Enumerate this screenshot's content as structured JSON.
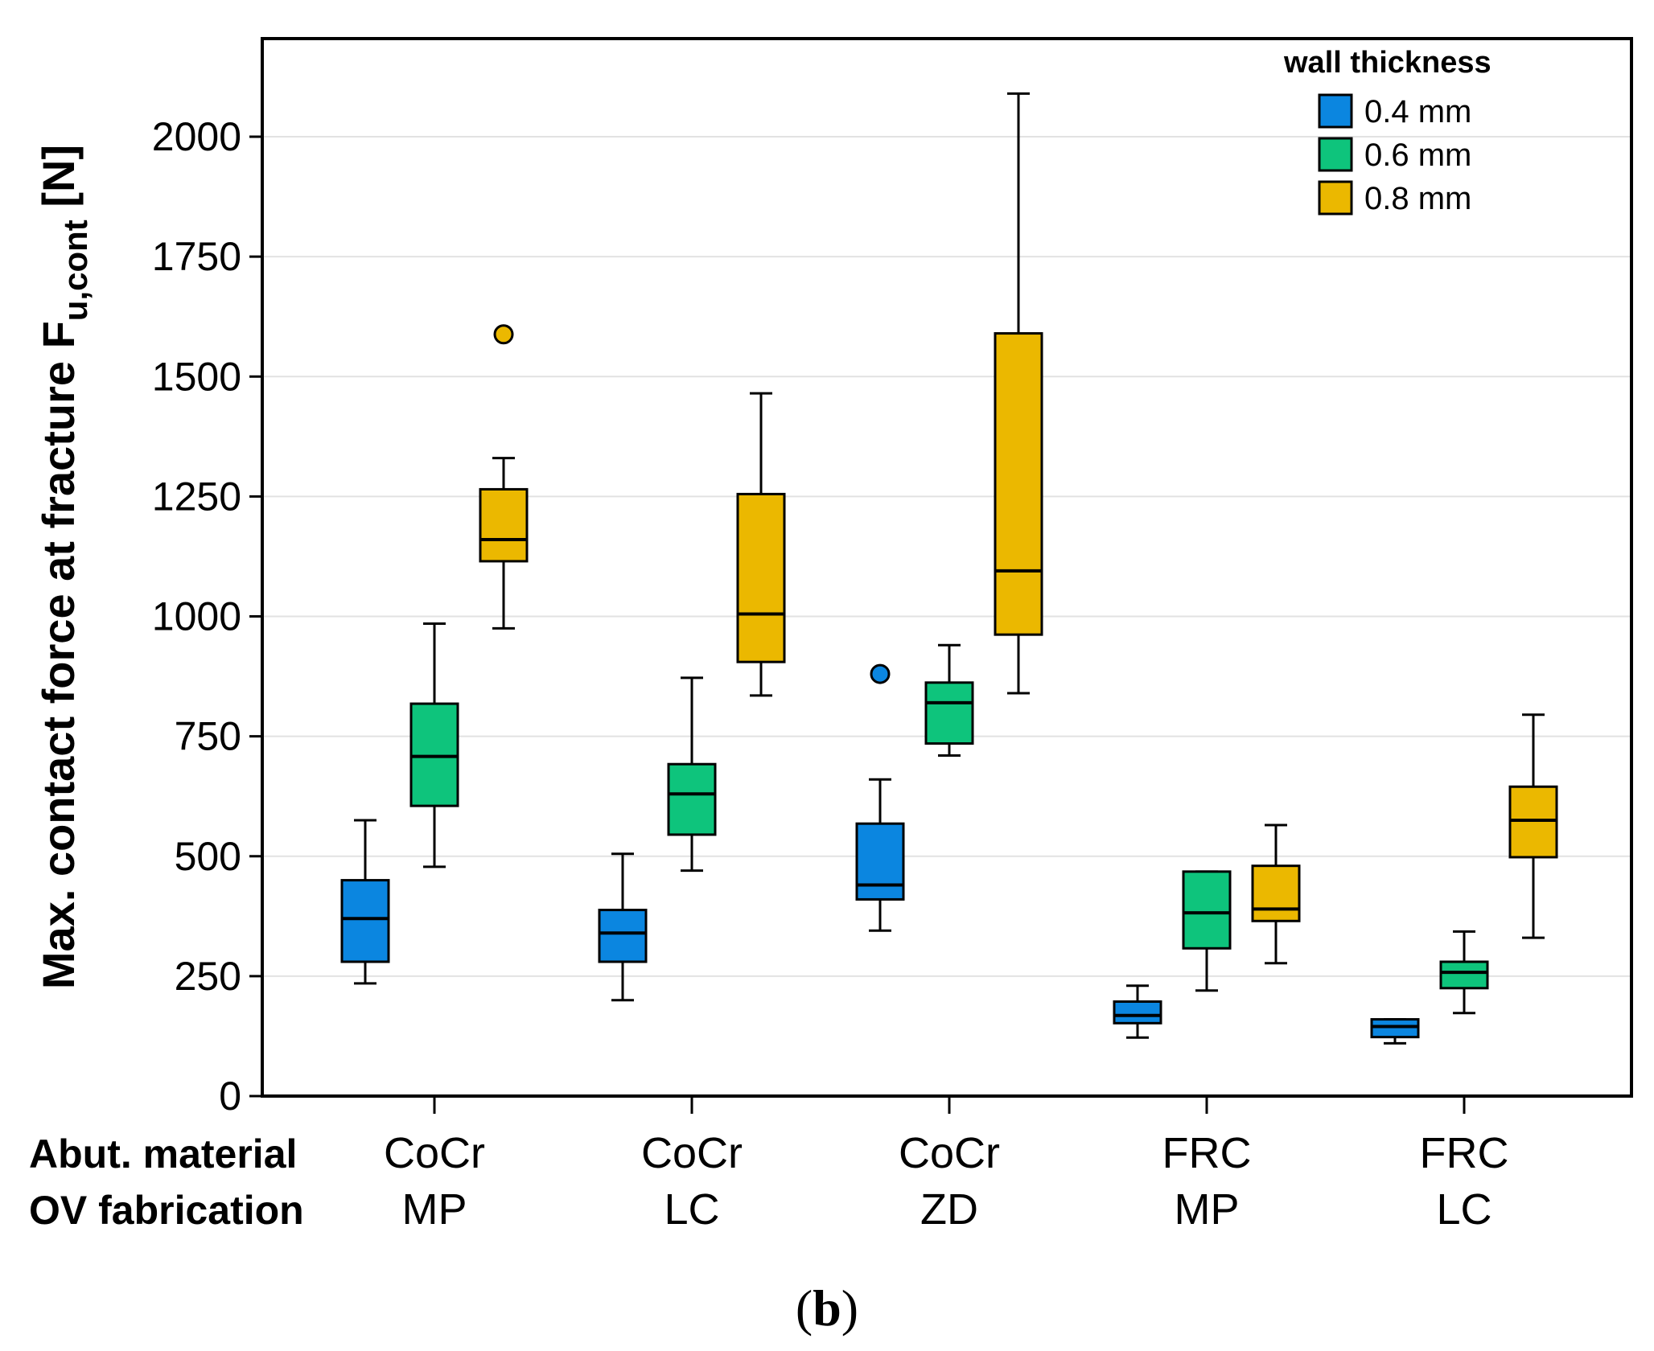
{
  "chart_data": {
    "type": "box",
    "ylabel_main": "Max. contact force at fracture F",
    "ylabel_sub": "u,cont",
    "ylabel_unit": " [N]",
    "ylim": [
      0,
      2220
    ],
    "yticks": [
      0,
      250,
      500,
      750,
      1000,
      1250,
      1500,
      1750,
      2000
    ],
    "grid": true,
    "row_labels": [
      "Abut. material",
      "OV fabrication"
    ],
    "groups": [
      {
        "material": "CoCr",
        "fabrication": "MP"
      },
      {
        "material": "CoCr",
        "fabrication": "LC"
      },
      {
        "material": "CoCr",
        "fabrication": "ZD"
      },
      {
        "material": "FRC",
        "fabrication": "MP"
      },
      {
        "material": "FRC",
        "fabrication": "LC"
      }
    ],
    "legend": {
      "title": "wall thickness",
      "position": "top-right",
      "entries": [
        "0.4 mm",
        "0.6 mm",
        "0.8 mm"
      ]
    },
    "series_colors": [
      "#0b86e0",
      "#0ec47c",
      "#ebb800"
    ],
    "boxes": [
      [
        {
          "min": 235,
          "q1": 280,
          "median": 370,
          "q3": 450,
          "max": 575,
          "outliers": []
        },
        {
          "min": 478,
          "q1": 605,
          "median": 708,
          "q3": 818,
          "max": 985,
          "outliers": []
        },
        {
          "min": 975,
          "q1": 1115,
          "median": 1160,
          "q3": 1265,
          "max": 1330,
          "outliers": [
            1588
          ]
        }
      ],
      [
        {
          "min": 200,
          "q1": 280,
          "median": 340,
          "q3": 388,
          "max": 505,
          "outliers": []
        },
        {
          "min": 470,
          "q1": 545,
          "median": 630,
          "q3": 692,
          "max": 872,
          "outliers": []
        },
        {
          "min": 835,
          "q1": 905,
          "median": 1005,
          "q3": 1255,
          "max": 1465,
          "outliers": []
        }
      ],
      [
        {
          "min": 345,
          "q1": 410,
          "median": 440,
          "q3": 568,
          "max": 660,
          "outliers": [
            880
          ]
        },
        {
          "min": 710,
          "q1": 735,
          "median": 820,
          "q3": 862,
          "max": 940,
          "outliers": []
        },
        {
          "min": 840,
          "q1": 962,
          "median": 1095,
          "q3": 1590,
          "max": 2090,
          "outliers": []
        }
      ],
      [
        {
          "min": 122,
          "q1": 152,
          "median": 168,
          "q3": 197,
          "max": 230,
          "outliers": []
        },
        {
          "min": 220,
          "q1": 308,
          "median": 382,
          "q3": 468,
          "max": 468,
          "outliers": []
        },
        {
          "min": 277,
          "q1": 365,
          "median": 390,
          "q3": 480,
          "max": 565,
          "outliers": []
        }
      ],
      [
        {
          "min": 110,
          "q1": 123,
          "median": 145,
          "q3": 160,
          "max": 160,
          "outliers": []
        },
        {
          "min": 173,
          "q1": 225,
          "median": 258,
          "q3": 280,
          "max": 343,
          "outliers": []
        },
        {
          "min": 330,
          "q1": 498,
          "median": 575,
          "q3": 645,
          "max": 795,
          "outliers": []
        }
      ]
    ],
    "caption": "(b)"
  }
}
